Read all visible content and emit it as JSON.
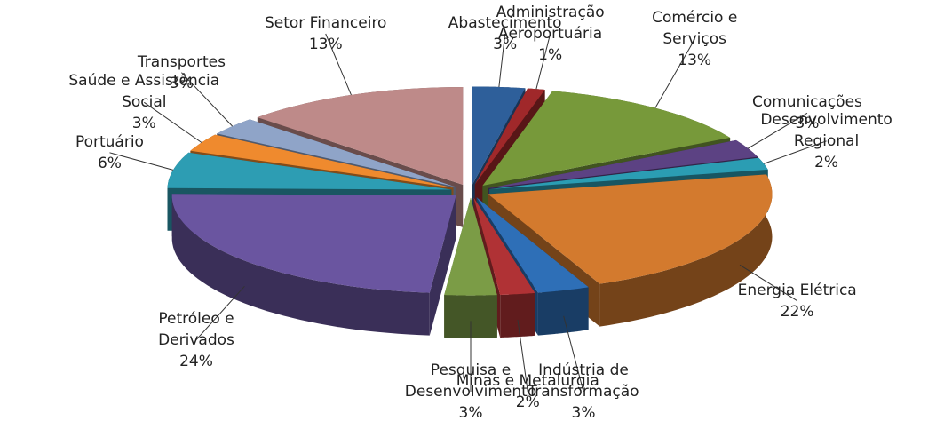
{
  "chart_data": {
    "type": "pie",
    "categories": [
      "Abastecimento",
      "Administração Aeroportuária",
      "Comércio e Serviços",
      "Comunicações",
      "Desenvolvimento Regional",
      "Energia Elétrica",
      "Indústria de Transformação",
      "Minas e Metalurgia",
      "Pesquisa e Desenvolvimento",
      "Petróleo e Derivados",
      "Portuário",
      "Saúde e Assistência Social",
      "Transportes",
      "Setor Financeiro"
    ],
    "values": [
      3,
      1,
      13,
      3,
      2,
      22,
      3,
      2,
      3,
      24,
      6,
      3,
      3,
      13
    ],
    "value_labels": [
      "3%",
      "1%",
      "13%",
      "3%",
      "2%",
      "22%",
      "3%",
      "2%",
      "3%",
      "24%",
      "6%",
      "3%",
      "3%",
      "13%"
    ],
    "colors": [
      "#2e5f9a",
      "#a0282a",
      "#77993a",
      "#5c4283",
      "#2b9db3",
      "#d37a2e",
      "#2e6fb7",
      "#b03235",
      "#7b9c46",
      "#6a55a0",
      "#2d9db3",
      "#ef8a2e",
      "#8fa4c8",
      "#be8a89"
    ]
  }
}
